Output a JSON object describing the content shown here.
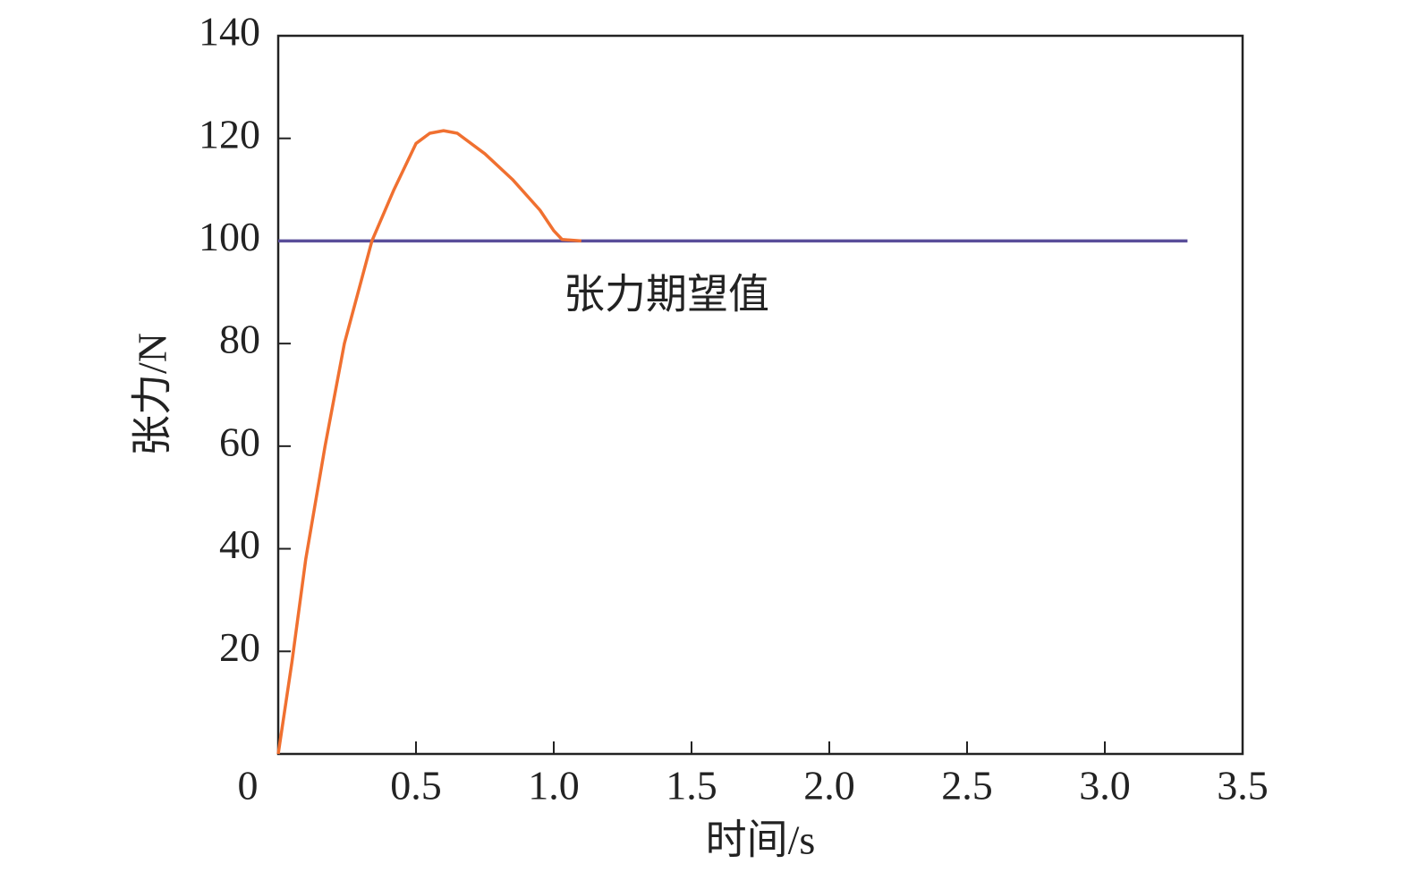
{
  "chart_data": {
    "type": "line",
    "xlabel": "时间/s",
    "ylabel": "张力/N",
    "annotation": "张力期望值",
    "series": [
      {
        "color": "#f07030",
        "x": [
          0,
          0.05,
          0.1,
          0.17,
          0.24,
          0.34,
          0.42,
          0.5,
          0.55,
          0.6,
          0.65,
          0.75,
          0.85,
          0.95,
          1.0,
          1.03,
          1.1
        ],
        "values": [
          0,
          18,
          38,
          60,
          80,
          100,
          110,
          119,
          121,
          121.5,
          121,
          117,
          112,
          106,
          102,
          100.3,
          100
        ]
      },
      {
        "color": "#5a4e9a",
        "x": [
          0,
          3.3
        ],
        "values": [
          100,
          100
        ]
      }
    ],
    "xlim": [
      0,
      3.5
    ],
    "xticks": [
      0,
      0.5,
      {
        "value": 1,
        "label": "1.0"
      },
      1.5,
      {
        "value": 2,
        "label": "2.0"
      },
      2.5,
      {
        "value": 3,
        "label": "3.0"
      },
      3.5
    ],
    "ylim": [
      0,
      140
    ],
    "yticks": [
      20,
      40,
      60,
      80,
      100,
      120,
      140
    ]
  }
}
